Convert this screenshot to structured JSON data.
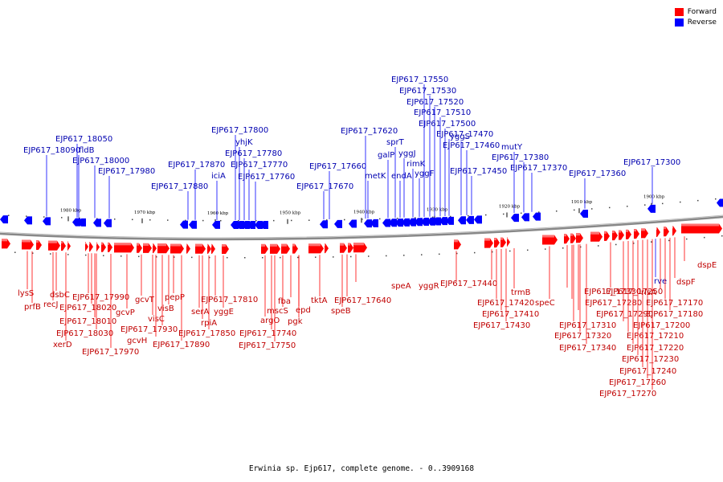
{
  "caption": "Erwinia sp. Ejp617, complete genome. - 0..3909168",
  "colors": {
    "forward": "#ff0000",
    "reverse": "#0000ff",
    "forward_label": "#c00000",
    "reverse_label": "#0000b0"
  },
  "legend": [
    {
      "label": "Forward",
      "color": "#ff0000"
    },
    {
      "label": "Reverse",
      "color": "#0000ff"
    }
  ],
  "kbp_ticks": [
    "1980 kbp",
    "1970 kbp",
    "1960 kbp",
    "1950 kbp",
    "1940 kbp",
    "1930 kbp",
    "1920 kbp",
    "1910 kbp",
    "1900 kbp"
  ],
  "reverse_genes": [
    "EJP617_18090",
    "EJP617_18050",
    "fldB",
    "EJP617_18000",
    "EJP617_17980",
    "EJP617_17880",
    "EJP617_17870",
    "iciA",
    "EJP617_17800",
    "yhjK",
    "EJP617_17780",
    "EJP617_17770",
    "EJP617_17760",
    "EJP617_17670",
    "EJP617_17660",
    "EJP617_17620",
    "metK",
    "galP",
    "sprT",
    "endA",
    "yggJ",
    "rimK",
    "yggF",
    "EJP617_17550",
    "EJP617_17530",
    "EJP617_17520",
    "EJP617_17510",
    "EJP617_17500",
    "EJP617_17470",
    "yggS",
    "EJP617_17460",
    "EJP617_17450",
    "mutY",
    "EJP617_17380",
    "EJP617_17370",
    "EJP617_17360",
    "EJP617_17300"
  ],
  "forward_genes": [
    "lysS",
    "prfB",
    "recJ",
    "dsbC",
    "EJP617_17990",
    "EJP617_18020",
    "EJP617_18010",
    "EJP617_18030",
    "xerD",
    "EJP617_17970",
    "gcvP",
    "gcvT",
    "visC",
    "gcvH",
    "visB",
    "EJP617_17930",
    "pepP",
    "EJP617_17890",
    "serA",
    "rpiA",
    "EJP617_17850",
    "EJP617_17810",
    "yggE",
    "argO",
    "EJP617_17740",
    "EJP617_17750",
    "mscS",
    "fba",
    "epd",
    "pgk",
    "tktA",
    "speB",
    "EJP617_17640",
    "speA",
    "yggR",
    "EJP617_17440",
    "EJP617_17420",
    "EJP617_17410",
    "EJP617_17430",
    "trmB",
    "speC",
    "EJP617_17330",
    "EJP617_17280",
    "EJP617_17310",
    "EJP617_17290",
    "EJP617_17320",
    "EJP617_17340",
    "EJP617_17250",
    "EJP617_17200",
    "EJP617_17210",
    "EJP617_17220",
    "EJP617_17230",
    "EJP617_17240",
    "EJP617_17260",
    "EJP617_17270",
    "rve",
    "rlsA",
    "EJP617_17170",
    "EJP617_17180",
    "dspF",
    "dspE"
  ]
}
